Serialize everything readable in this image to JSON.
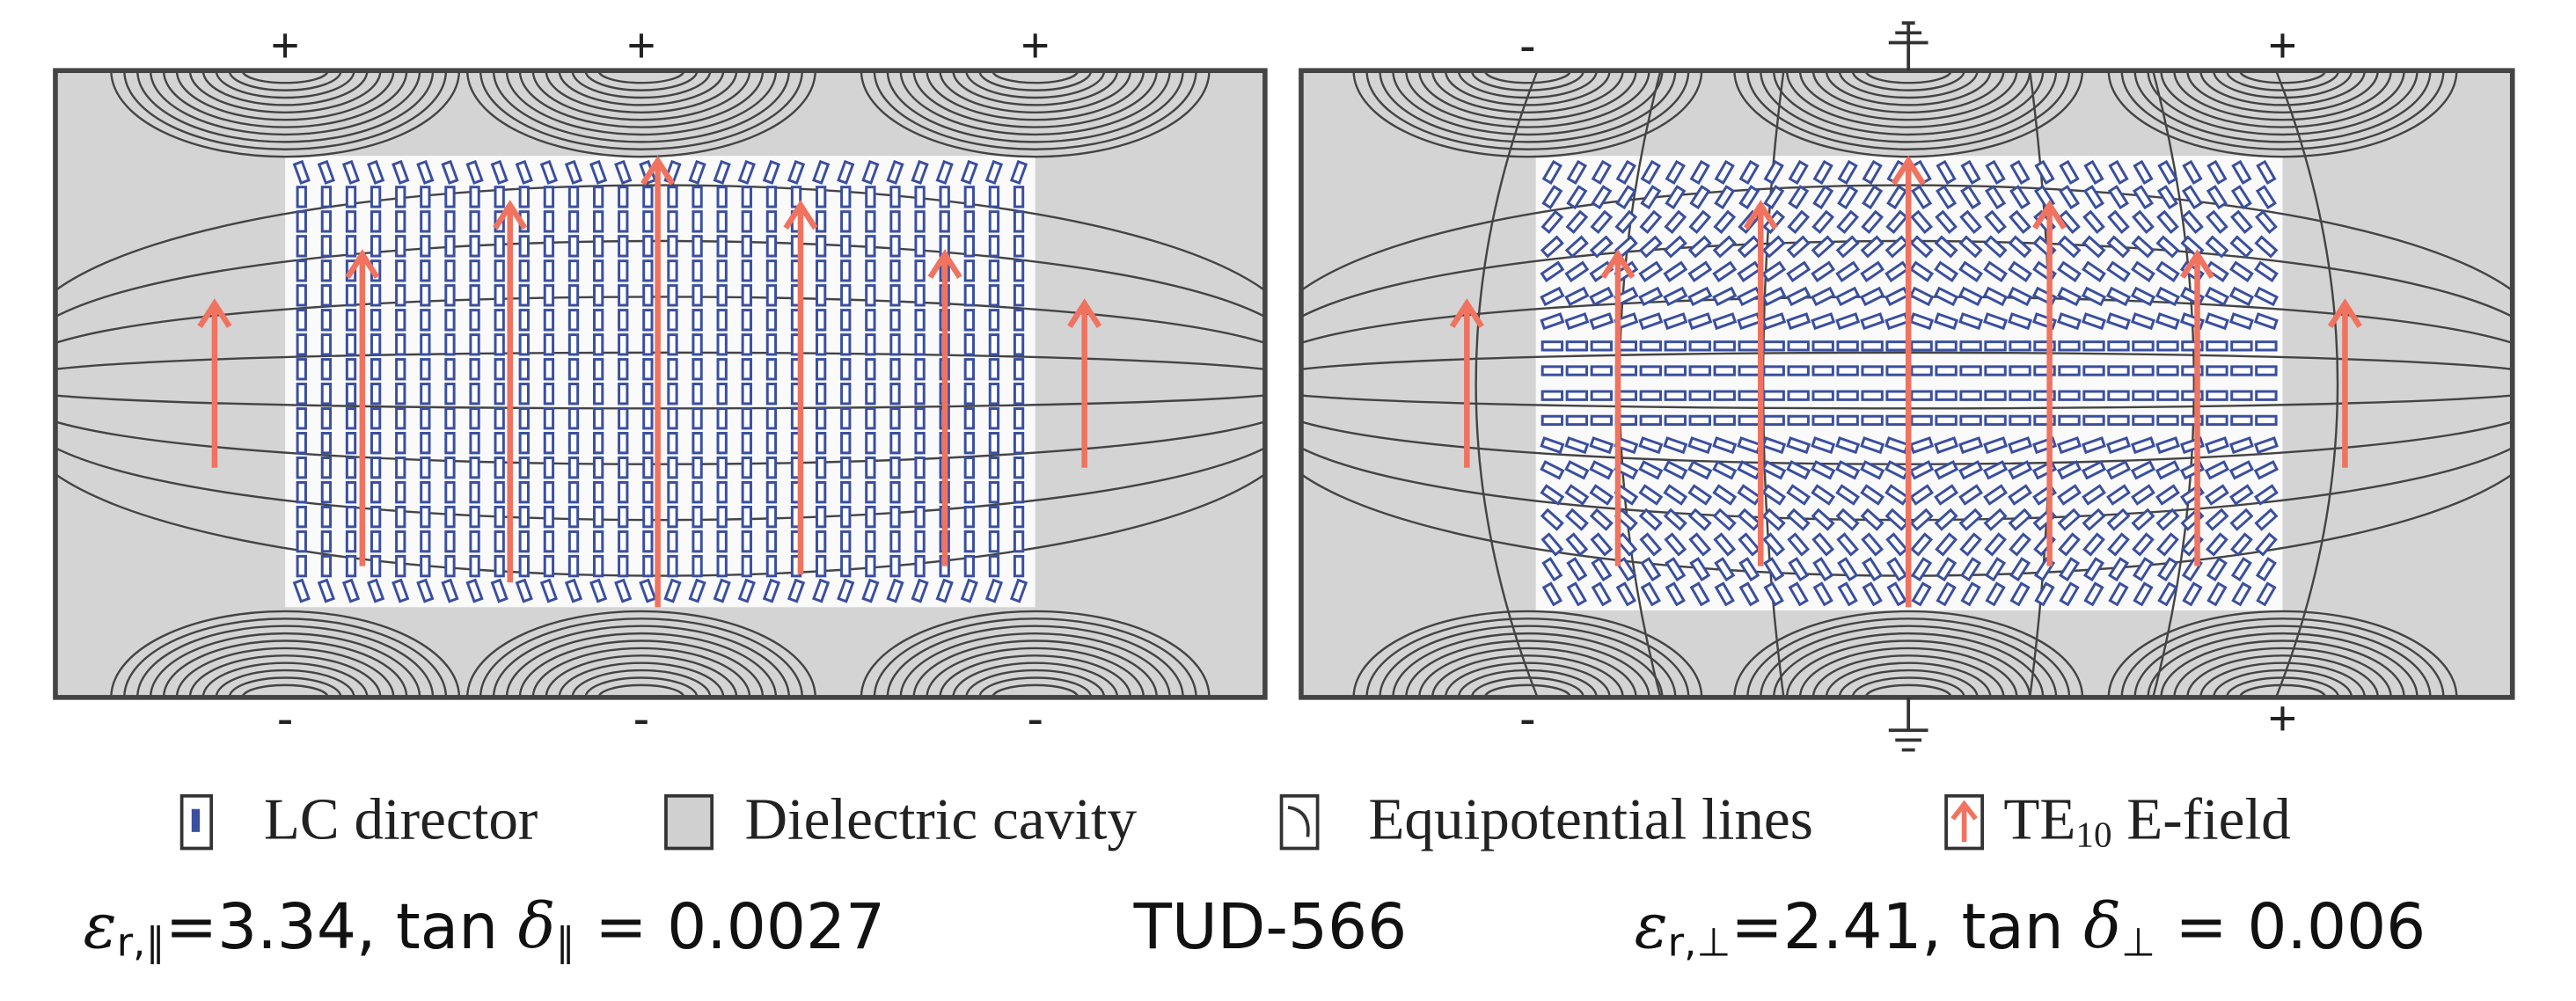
{
  "left_panel": {
    "top_signs": [
      "+",
      "+",
      "+"
    ],
    "bottom_signs": [
      "-",
      "-",
      "-"
    ]
  },
  "right_panel": {
    "top_signs": [
      "-",
      "+"
    ],
    "bottom_signs": [
      "-",
      "+"
    ]
  },
  "legend": {
    "items": [
      {
        "label": "LC director"
      },
      {
        "label": "Dielectric cavity"
      },
      {
        "label": "Equipotential lines"
      },
      {
        "label": "TE",
        "subscript": "10",
        "suffix": " E-field"
      }
    ]
  },
  "captions": [
    {
      "segments": [
        {
          "text": "ε",
          "style": "italic"
        },
        {
          "text": "r,∥",
          "style": "sub"
        },
        {
          "text": "=3.34, tan ",
          "style": "normal"
        },
        {
          "text": "δ",
          "style": "italic"
        },
        {
          "text": "∥",
          "style": "sub"
        },
        {
          "text": " = 0.0027",
          "style": "normal"
        }
      ]
    },
    {
      "segments": [
        {
          "text": "TUD-566",
          "style": "normal"
        }
      ]
    },
    {
      "segments": [
        {
          "text": "ε",
          "style": "italic"
        },
        {
          "text": "r,⊥",
          "style": "sub"
        },
        {
          "text": "=2.41, tan ",
          "style": "normal"
        },
        {
          "text": "δ",
          "style": "italic"
        },
        {
          "text": "⊥",
          "style": "sub"
        },
        {
          "text": " = 0.006",
          "style": "normal"
        }
      ]
    }
  ]
}
